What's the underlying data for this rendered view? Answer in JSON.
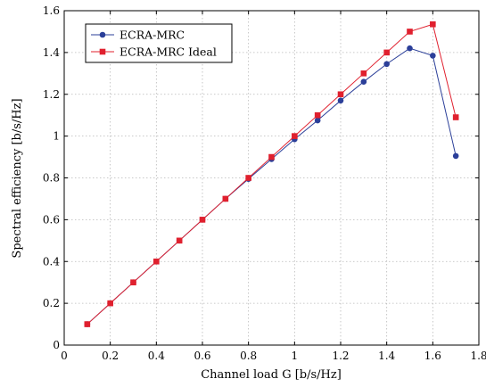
{
  "chart_data": {
    "type": "line",
    "xlabel": "Channel load G [b/s/Hz]",
    "ylabel": "Spectral efficiency [b/s/Hz]",
    "xlim": [
      0,
      1.8
    ],
    "ylim": [
      0,
      1.6
    ],
    "xticks": [
      "0",
      "0.2",
      "0.4",
      "0.6",
      "0.8",
      "1",
      "1.2",
      "1.4",
      "1.6",
      "1.8"
    ],
    "yticks": [
      "0",
      "0.2",
      "0.4",
      "0.6",
      "0.8",
      "1",
      "1.2",
      "1.4",
      "1.6"
    ],
    "grid": true,
    "legend_position": "top-left",
    "x": [
      0.1,
      0.2,
      0.3,
      0.4,
      0.5,
      0.6,
      0.7,
      0.8,
      0.9,
      1.0,
      1.1,
      1.2,
      1.3,
      1.4,
      1.5,
      1.6,
      1.7
    ],
    "series": [
      {
        "name": "ECRA-MRC",
        "color": "#2b3f99",
        "marker": "circle",
        "values": [
          0.1,
          0.2,
          0.3,
          0.4,
          0.5,
          0.6,
          0.7,
          0.795,
          0.89,
          0.985,
          1.075,
          1.17,
          1.26,
          1.345,
          1.42,
          1.385,
          0.905
        ]
      },
      {
        "name": "ECRA-MRC Ideal",
        "color": "#e0202e",
        "marker": "square",
        "values": [
          0.1,
          0.2,
          0.3,
          0.4,
          0.5,
          0.6,
          0.7,
          0.8,
          0.9,
          1.0,
          1.1,
          1.2,
          1.3,
          1.4,
          1.5,
          1.535,
          1.09
        ]
      }
    ]
  }
}
